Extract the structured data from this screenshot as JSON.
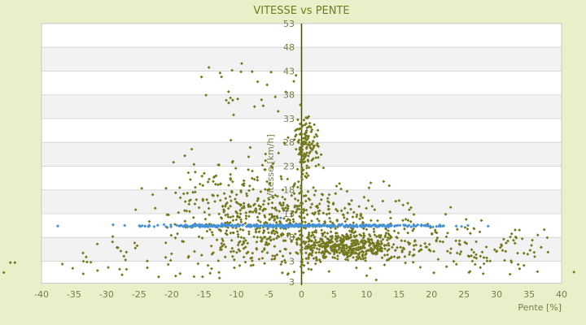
{
  "chart_data": {
    "type": "scatter",
    "title": "VITESSE vs PENTE",
    "xlabel": "Pente [%]",
    "ylabel": "Vitesse [km/h]",
    "xlim": [
      -40,
      40
    ],
    "ylim": [
      -1.62,
      53
    ],
    "xticks": [
      -40,
      -35,
      -30,
      -25,
      -20,
      -15,
      -10,
      -5,
      0,
      5,
      10,
      15,
      20,
      25,
      30,
      35,
      40
    ],
    "yticks": [
      53,
      48,
      43,
      38,
      33,
      28,
      23,
      18,
      13,
      8,
      3
    ],
    "extra_y_label": "3",
    "grid": "horizontal-bands",
    "legend": "none",
    "colors": {
      "page_background": "#e9efc9",
      "band_light": "#ffffff",
      "band_dark": "#f2f2f2",
      "gridline": "#d8d8d8",
      "plot_border": "#c9c9c9",
      "zero_axis": "#4b530e",
      "title_text": "#6e7e1a",
      "tick_text": "#787b49",
      "series_olive": "#74781c",
      "series_blue": "#4591d7"
    },
    "seed": 1234,
    "series": [
      {
        "name": "vitesse-vs-pente-points",
        "marker": "diamond",
        "color": "#74781c",
        "clusters": [
          {
            "n": 420,
            "x": {
              "dist": "normal",
              "mu": 7.5,
              "sigma": 4.5,
              "min": 0.3,
              "max": 22
            },
            "y": {
              "dist": "normal",
              "mu": 6.2,
              "sigma": 1.7,
              "min": 3.1,
              "max": 10.8
            }
          },
          {
            "n": 70,
            "x": {
              "dist": "uniform",
              "min": 17,
              "max": 38
            },
            "y": {
              "dist": "normal",
              "mu": 6,
              "sigma": 2.2,
              "min": 2,
              "max": 11
            }
          },
          {
            "n": 330,
            "x": {
              "dist": "normal",
              "mu": -2,
              "sigma": 7,
              "min": -28,
              "max": 10
            },
            "y": {
              "dist": "normal",
              "mu": 10,
              "sigma": 4.5,
              "min": 1.5,
              "max": 24
            }
          },
          {
            "n": 200,
            "x": {
              "dist": "normal",
              "mu": -9,
              "sigma": 6.5,
              "min": -33,
              "max": 1
            },
            "y": {
              "dist": "normal",
              "mu": 16,
              "sigma": 5,
              "min": 6,
              "max": 30
            }
          },
          {
            "n": 130,
            "x": {
              "dist": "normal",
              "mu": 0.7,
              "sigma": 1.1,
              "min": -1.3,
              "max": 3.6
            },
            "y": {
              "dist": "normal",
              "mu": 27.5,
              "sigma": 3.2,
              "min": 19,
              "max": 33.8
            }
          },
          {
            "n": 150,
            "x": {
              "dist": "uniform",
              "min": -34,
              "max": 36
            },
            "y": {
              "dist": "normal",
              "mu": 4,
              "sigma": 2.5,
              "min": -1.2,
              "max": 9
            }
          },
          {
            "n": 22,
            "x": {
              "dist": "normal",
              "mu": -7,
              "sigma": 4.5,
              "min": -17,
              "max": 1.5
            },
            "y": {
              "dist": "uniform",
              "min": 33.5,
              "max": 44
            }
          },
          {
            "n": 140,
            "x": {
              "dist": "normal",
              "mu": 4,
              "sigma": 11,
              "min": -22,
              "max": 30
            },
            "y": {
              "dist": "normal",
              "mu": 12.5,
              "sigma": 3.5,
              "min": 7,
              "max": 21
            }
          },
          {
            "n": 28,
            "x": {
              "dist": "normal",
              "mu": 0,
              "sigma": 0.12,
              "min": -0.3,
              "max": 0.3
            },
            "y": {
              "dist": "uniform",
              "min": 1,
              "max": 31
            }
          }
        ],
        "points": [
          [
            -9.2,
            44.6
          ],
          [
            -7.6,
            42.9
          ],
          [
            -5.3,
            40.1
          ],
          [
            -2.4,
            38.6
          ],
          [
            -11.2,
            36.3
          ],
          [
            -5.9,
            35.7
          ],
          [
            -44.8,
            2.7
          ],
          [
            -44.1,
            2.7
          ],
          [
            -45.8,
            0.6
          ],
          [
            41.9,
            0.7
          ],
          [
            36.3,
            0.8
          ],
          [
            34.2,
            2.1
          ],
          [
            -36.8,
            2.4
          ],
          [
            -35.2,
            1.5
          ]
        ]
      },
      {
        "name": "reference-speed-band-points",
        "marker": "diamond",
        "color": "#4591d7",
        "y_center": 10.45,
        "y_sigma": 0.13,
        "segments": [
          {
            "n": 380,
            "min": -17.8,
            "max": 14
          },
          {
            "n": 22,
            "min": -25,
            "max": -17.8
          },
          {
            "n": 26,
            "min": 14,
            "max": 19.5
          },
          {
            "n": 8,
            "min": 19.5,
            "max": 23
          }
        ],
        "outlier_x": [
          -37.5,
          -29,
          -27.2,
          -24.8,
          23.8,
          24.6,
          25.6,
          28.7
        ],
        "points": [
          [
            -3.2,
            12.1
          ]
        ]
      }
    ]
  }
}
